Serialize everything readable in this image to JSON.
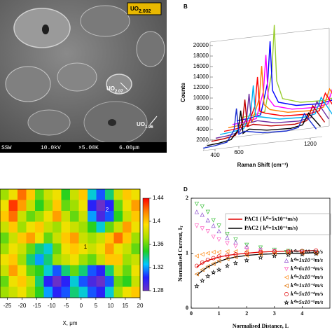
{
  "figure": {
    "labels": [
      {
        "base": "UO",
        "sub": "2.002"
      },
      {
        "base": "UO",
        "sub": "2.07"
      },
      {
        "base": "UO",
        "sub": "1.96"
      }
    ],
    "footer": [
      "SSW",
      "10.0kV",
      "×5.00K",
      "6.00μm"
    ]
  },
  "chart_data": [
    {
      "type": "waterfall3d",
      "panel_label": "B",
      "xlabel": "Raman Shift (cm⁻¹)",
      "ylabel": "Counts",
      "x": [
        300,
        400,
        500,
        560,
        580,
        600,
        650,
        800,
        1000,
        1100,
        1150,
        1250
      ],
      "xlim": [
        300,
        1300
      ],
      "xticks": [
        400,
        600,
        1200
      ],
      "ylim": [
        2000,
        20000
      ],
      "yticks": [
        2000,
        4000,
        6000,
        8000,
        10000,
        12000,
        14000,
        16000,
        18000,
        20000
      ],
      "series": [
        {
          "color": "#1a2fd0",
          "values": [
            2200,
            2400,
            2800,
            4950,
            9000,
            4050,
            4500,
            3800,
            3600,
            4000,
            6500,
            3300
          ]
        },
        {
          "color": "#000000",
          "values": [
            2100,
            2300,
            2700,
            4400,
            8000,
            3600,
            4300,
            3700,
            3500,
            3900,
            6000,
            3200
          ]
        },
        {
          "color": "#c00000",
          "values": [
            2300,
            2500,
            2900,
            5200,
            9500,
            4300,
            4600,
            3900,
            3700,
            4100,
            6800,
            3400
          ]
        },
        {
          "color": "#7030a0",
          "values": [
            2300,
            2500,
            2900,
            5500,
            10000,
            4500,
            4700,
            3900,
            3700,
            4100,
            7000,
            3400
          ]
        },
        {
          "color": "#00b0f0",
          "values": [
            2400,
            2600,
            3000,
            6000,
            11000,
            5000,
            4800,
            4000,
            3800,
            4200,
            7200,
            3500
          ]
        },
        {
          "color": "#ff0000",
          "values": [
            2400,
            2600,
            3000,
            6600,
            12000,
            5400,
            4900,
            4000,
            3800,
            4200,
            7400,
            3500
          ]
        },
        {
          "color": "#ff7f00",
          "values": [
            2500,
            2700,
            3100,
            7400,
            13500,
            6100,
            5000,
            4100,
            3900,
            4300,
            7600,
            3600
          ]
        },
        {
          "color": "#ff00ff",
          "values": [
            2500,
            2700,
            3100,
            8200,
            15000,
            6700,
            5100,
            4100,
            3900,
            4300,
            7800,
            3600
          ]
        },
        {
          "color": "#0000ff",
          "values": [
            2600,
            2800,
            3200,
            9300,
            17000,
            7600,
            5200,
            4200,
            4000,
            4400,
            8000,
            3700
          ]
        },
        {
          "color": "#9acd32",
          "values": [
            2600,
            2800,
            3200,
            10700,
            19500,
            8800,
            5300,
            4200,
            4000,
            4400,
            8200,
            3700
          ]
        }
      ]
    },
    {
      "type": "heatmap",
      "xlabel": "X, μm",
      "xlim": [
        -27.5,
        20
      ],
      "xticks": [
        -25,
        -20,
        -15,
        -10,
        -5,
        0,
        5,
        10,
        15,
        20
      ],
      "clim": [
        1.28,
        1.44
      ],
      "cticks": [
        1.28,
        1.32,
        1.36,
        1.4,
        1.44
      ],
      "colormap": [
        "#6a30c8",
        "#2020ff",
        "#00c8ff",
        "#20d020",
        "#a8e000",
        "#ffe000",
        "#ff8000",
        "#ff0000"
      ],
      "annotations": [
        "1",
        "2"
      ],
      "z": [
        [
          1.37,
          1.39,
          1.42,
          1.4,
          1.36,
          1.38,
          1.39,
          1.35,
          1.38,
          1.4,
          1.33,
          1.31,
          1.34,
          1.38,
          1.4,
          1.39
        ],
        [
          1.39,
          1.43,
          1.41,
          1.38,
          1.35,
          1.37,
          1.4,
          1.36,
          1.37,
          1.39,
          1.3,
          1.28,
          1.3,
          1.36,
          1.39,
          1.41
        ],
        [
          1.4,
          1.42,
          1.38,
          1.36,
          1.37,
          1.39,
          1.41,
          1.38,
          1.36,
          1.38,
          1.32,
          1.29,
          1.31,
          1.35,
          1.38,
          1.4
        ],
        [
          1.38,
          1.4,
          1.37,
          1.39,
          1.4,
          1.38,
          1.37,
          1.39,
          1.38,
          1.37,
          1.35,
          1.33,
          1.36,
          1.38,
          1.41,
          1.39
        ],
        [
          1.36,
          1.38,
          1.4,
          1.41,
          1.39,
          1.36,
          1.38,
          1.4,
          1.41,
          1.38,
          1.37,
          1.38,
          1.4,
          1.42,
          1.4,
          1.37
        ],
        [
          1.37,
          1.39,
          1.38,
          1.36,
          1.34,
          1.33,
          1.36,
          1.39,
          1.4,
          1.39,
          1.38,
          1.39,
          1.41,
          1.39,
          1.38,
          1.36
        ],
        [
          1.39,
          1.4,
          1.37,
          1.34,
          1.32,
          1.34,
          1.37,
          1.38,
          1.39,
          1.37,
          1.36,
          1.38,
          1.4,
          1.4,
          1.37,
          1.38
        ],
        [
          1.38,
          1.41,
          1.39,
          1.36,
          1.35,
          1.33,
          1.31,
          1.34,
          1.36,
          1.34,
          1.31,
          1.3,
          1.34,
          1.38,
          1.36,
          1.39
        ],
        [
          1.36,
          1.39,
          1.4,
          1.38,
          1.34,
          1.3,
          1.28,
          1.3,
          1.33,
          1.31,
          1.29,
          1.28,
          1.31,
          1.36,
          1.35,
          1.38
        ],
        [
          1.37,
          1.38,
          1.39,
          1.37,
          1.35,
          1.32,
          1.3,
          1.31,
          1.34,
          1.33,
          1.31,
          1.3,
          1.33,
          1.37,
          1.39,
          1.4
        ]
      ]
    },
    {
      "type": "line",
      "panel_label": "D",
      "xlabel": "Normalised Distance, L",
      "ylabel": "Normalised Current, I",
      "ylabel_sub": "T",
      "x": [
        0.2,
        0.4,
        0.6,
        0.8,
        1.0,
        1.3,
        1.6,
        2.0,
        2.5,
        3.0,
        3.5,
        4.0,
        4.5
      ],
      "xlim": [
        0,
        5
      ],
      "xticks": [
        0,
        1,
        2,
        3,
        4
      ],
      "ylim": [
        0,
        2
      ],
      "yticks": [
        0,
        1,
        2
      ],
      "series": [
        {
          "name": "PAC1 ( k⁰=5x10⁻⁴m/s)",
          "color": "#e00000",
          "line": true,
          "values": [
            0.75,
            0.82,
            0.87,
            0.9,
            0.93,
            0.96,
            0.98,
            1.0,
            1.02,
            1.03,
            1.04,
            1.04,
            1.05
          ]
        },
        {
          "name": "PAC2 ( k⁰=1x10⁻⁴m/s)",
          "color": "#000000",
          "line": true,
          "values": [
            0.6,
            0.68,
            0.75,
            0.8,
            0.85,
            0.9,
            0.93,
            0.96,
            0.98,
            0.99,
            1.0,
            1.0,
            1.01
          ]
        },
        {
          "name": "k⁰=1x10⁻²m/s",
          "color": "#3cc03c",
          "marker": "triangle-down",
          "values": [
            1.9,
            1.85,
            1.75,
            1.6,
            1.5,
            1.35,
            1.25,
            1.15,
            1.1,
            1.06,
            1.04,
            1.03,
            1.02
          ]
        },
        {
          "name": "k⁰=1x10⁻³m/s",
          "color": "#9050d0",
          "marker": "triangle-up",
          "values": [
            1.75,
            1.7,
            1.6,
            1.5,
            1.4,
            1.28,
            1.2,
            1.12,
            1.07,
            1.05,
            1.03,
            1.02,
            1.02
          ]
        },
        {
          "name": "k⁰=6x10⁻⁴m/s",
          "color": "#ff60c0",
          "marker": "triangle-down",
          "values": [
            1.5,
            1.45,
            1.4,
            1.3,
            1.25,
            1.18,
            1.13,
            1.08,
            1.05,
            1.03,
            1.02,
            1.01,
            1.01
          ]
        },
        {
          "name": "k⁰=3x10⁻⁴m/s",
          "color": "#ff9020",
          "marker": "triangle-left",
          "values": [
            0.95,
            0.98,
            1.0,
            1.02,
            1.02,
            1.03,
            1.03,
            1.03,
            1.02,
            1.02,
            1.02,
            1.01,
            1.01
          ]
        },
        {
          "name": "k⁰=1x10⁻⁴m/s",
          "color": "#e07000",
          "marker": "triangle-left",
          "values": [
            0.62,
            0.7,
            0.76,
            0.81,
            0.86,
            0.9,
            0.93,
            0.96,
            0.98,
            0.99,
            1.0,
            1.0,
            1.0
          ]
        },
        {
          "name": "k⁰=5x10⁻⁴m/s",
          "color": "#e00000",
          "marker": "circle",
          "values": [
            0.77,
            0.83,
            0.88,
            0.91,
            0.94,
            0.96,
            0.98,
            1.0,
            1.02,
            1.03,
            1.03,
            1.04,
            1.05
          ]
        },
        {
          "name": "k⁰=5x10⁻⁵m/s",
          "color": "#000000",
          "marker": "star",
          "values": [
            0.4,
            0.5,
            0.58,
            0.65,
            0.7,
            0.77,
            0.82,
            0.87,
            0.92,
            0.95,
            0.97,
            0.98,
            0.99
          ]
        }
      ]
    }
  ]
}
